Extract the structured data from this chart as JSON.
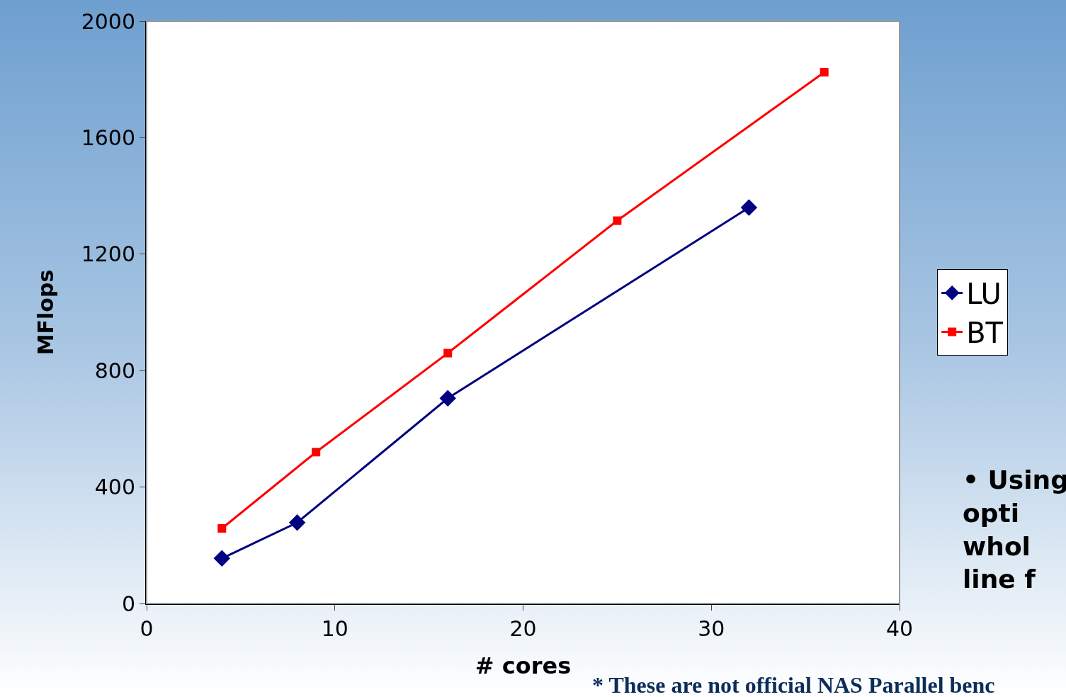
{
  "chart_data": {
    "type": "line",
    "xlabel": "# cores",
    "ylabel": "MFlops",
    "xlim": [
      0,
      40
    ],
    "xticks": [
      0,
      10,
      20,
      30,
      40
    ],
    "ylim": [
      0,
      2000
    ],
    "yticks": [
      0,
      400,
      800,
      1200,
      1600,
      2000
    ],
    "grid": false,
    "legend": "right",
    "series": [
      {
        "name": "LU",
        "color": "#000080",
        "marker": "diamond",
        "x": [
          4,
          8,
          16,
          32
        ],
        "values": [
          155,
          278,
          705,
          1360
        ]
      },
      {
        "name": "BT",
        "color": "#ff0000",
        "marker": "square",
        "x": [
          4,
          9,
          16,
          25,
          36
        ],
        "values": [
          258,
          520,
          860,
          1315,
          1825
        ]
      }
    ],
    "annotations": [
      "* These are not official NAS Parallel benc",
      "• Using\nopti\nwhol\nline f"
    ]
  }
}
